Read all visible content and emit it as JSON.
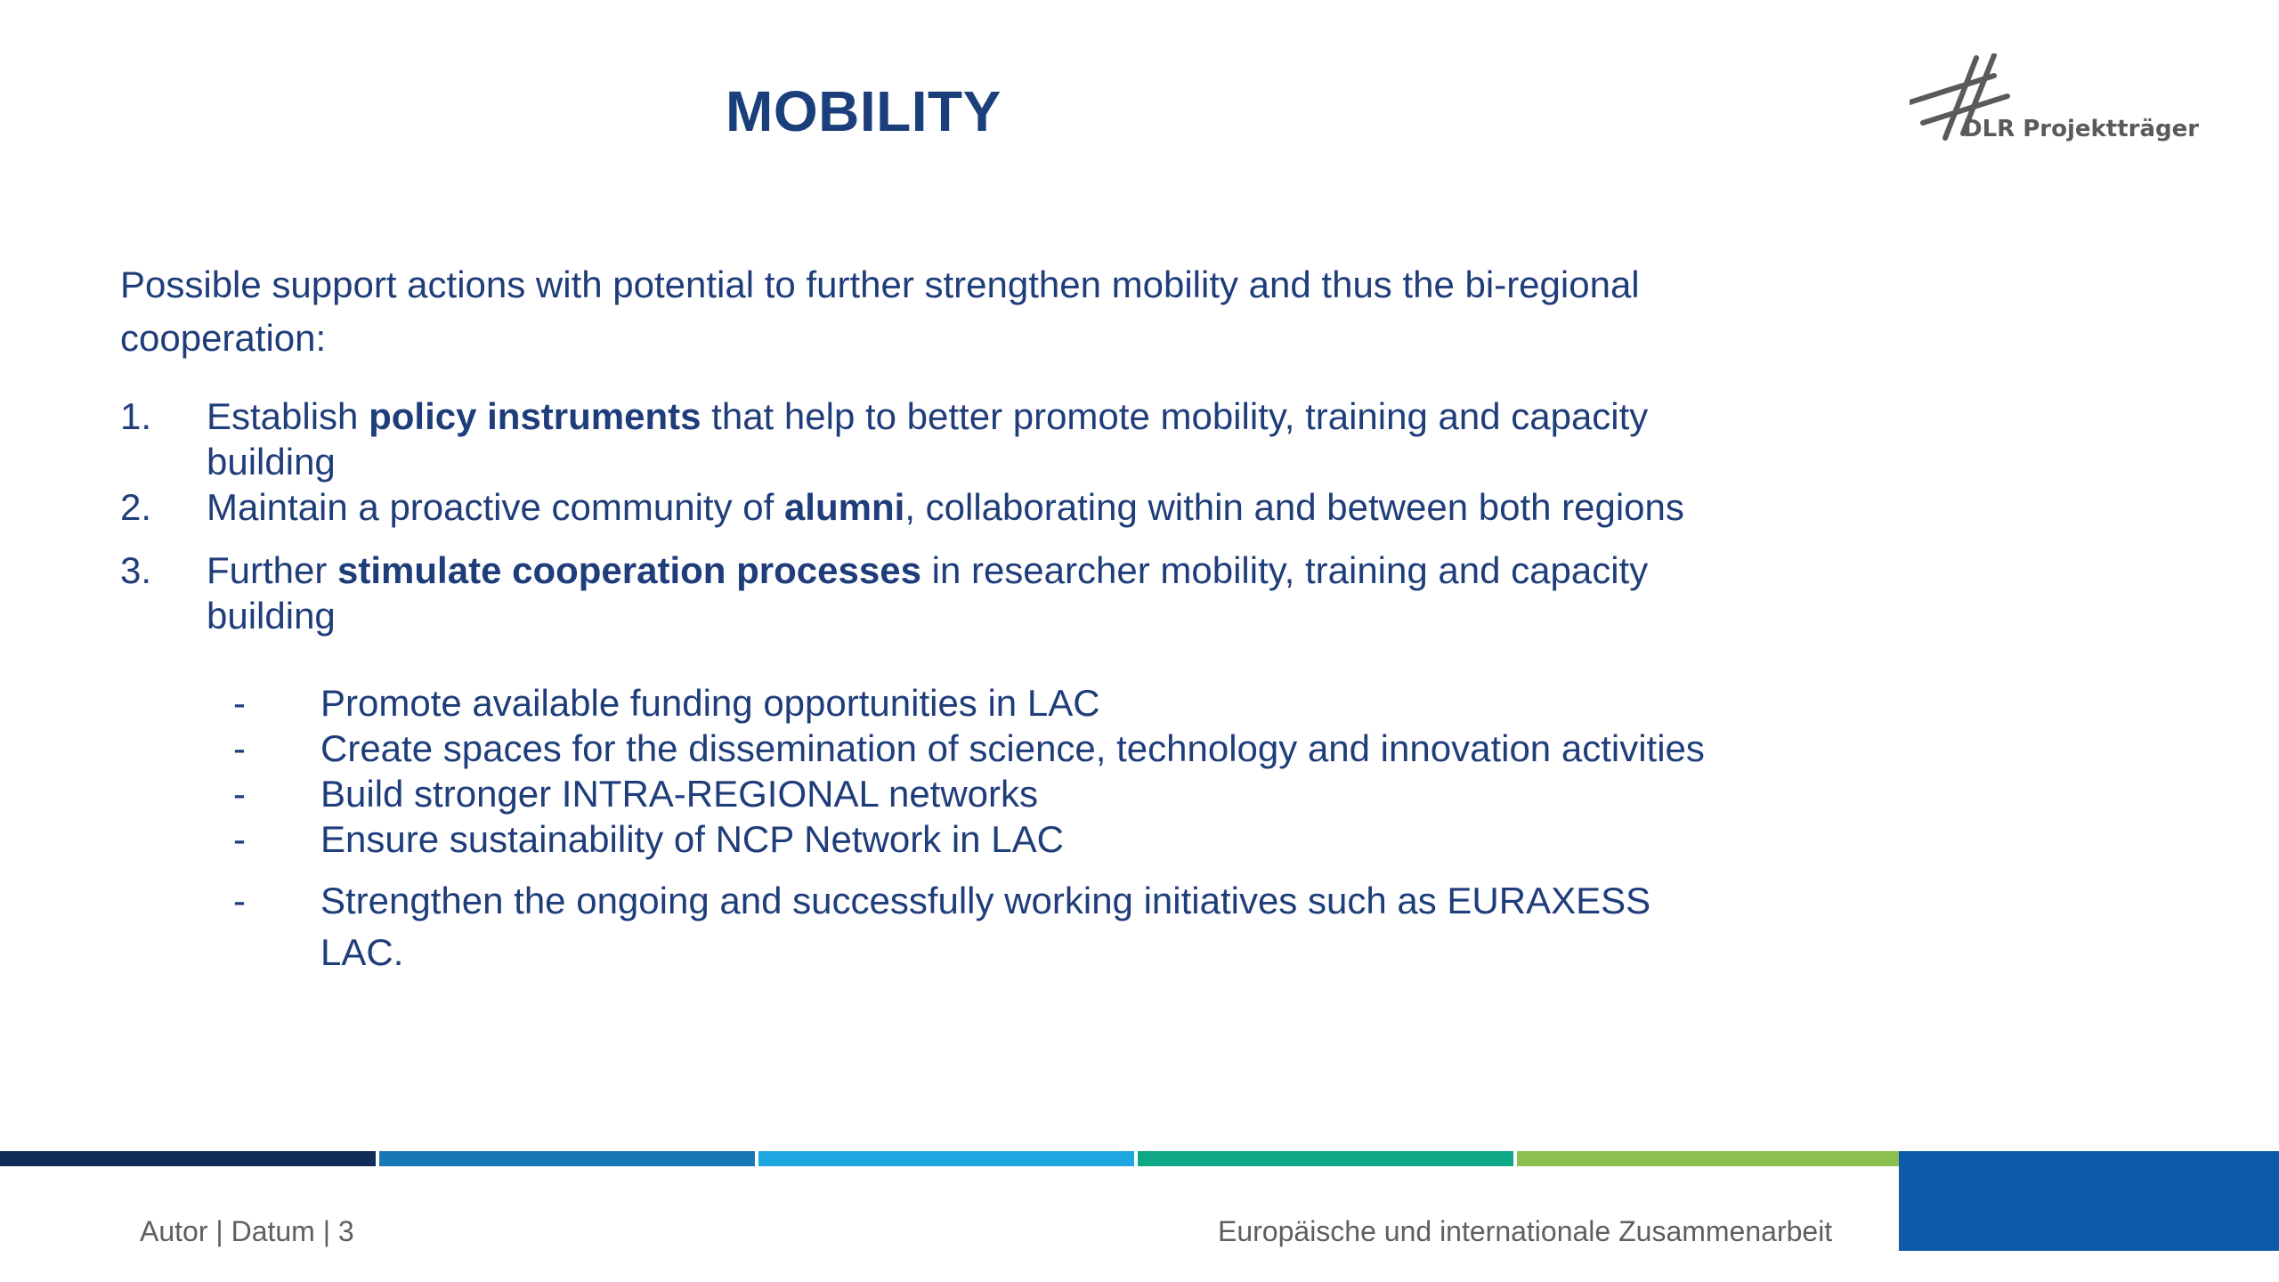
{
  "title": "MOBILITY",
  "logo": {
    "text": "DLR Projektträger",
    "icon": "dlr-cross-icon"
  },
  "intro": "Possible support actions with potential to further strengthen mobility and thus the bi-regional cooperation:",
  "items": [
    {
      "num": "1.",
      "pre": "Establish ",
      "bold": "policy instruments",
      "post": " that help to better promote mobility, training and capacity building"
    },
    {
      "num": "2.",
      "pre": "Maintain a proactive community of ",
      "bold": "alumni",
      "post": ", collaborating within and between both regions"
    },
    {
      "num": "3.",
      "pre": "Further ",
      "bold": "stimulate cooperation processes",
      "post": " in researcher mobility, training and capacity building"
    }
  ],
  "subitems": [
    {
      "dash": "-",
      "text": "Promote available funding opportunities in LAC"
    },
    {
      "dash": "-",
      "text": "Create spaces for the dissemination of science, technology and innovation activities"
    },
    {
      "dash": "-",
      "text": "Build stronger INTRA-REGIONAL networks"
    },
    {
      "dash": "-",
      "text": "Ensure sustainability of NCP Network in LAC"
    },
    {
      "dash": "-",
      "text": "Strengthen the ongoing and successfully working initiatives such as EURAXESS LAC."
    }
  ],
  "footer": {
    "left": "Autor | Datum | 3",
    "right": "Europäische und internationale Zusammenarbeit"
  },
  "colors": {
    "title": "#1b3f7a",
    "body_text": "#1f3d7a",
    "bar_1": "#0f2d57",
    "bar_2": "#1878b4",
    "bar_3": "#1ea6e0",
    "bar_4": "#0fa886",
    "bar_5": "#8bc04f",
    "corner_block": "#0d5aa8",
    "footer_text": "#5f5f5f"
  }
}
